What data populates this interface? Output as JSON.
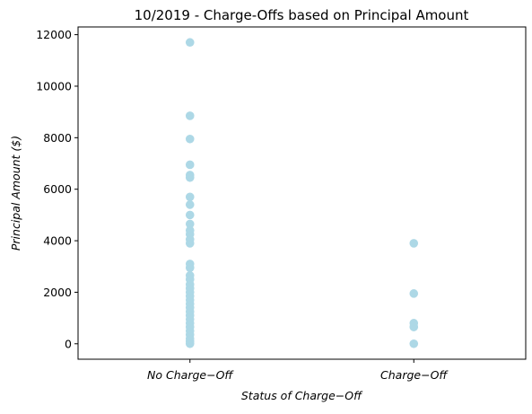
{
  "chart_data": {
    "type": "scatter",
    "title": "10/2019 - Charge-Offs based on Principal Amount",
    "xlabel": "Status of Charge−Off",
    "ylabel": "Principal Amount ($)",
    "categories": [
      "No Charge−Off",
      "Charge−Off"
    ],
    "x_ticks": [
      "No Charge−Off",
      "Charge−Off"
    ],
    "y_ticks": [
      "0",
      "2000",
      "4000",
      "6000",
      "8000",
      "10000",
      "12000"
    ],
    "y_tick_values": [
      0,
      2000,
      4000,
      6000,
      8000,
      10000,
      12000
    ],
    "ylim": [
      -600,
      12300
    ],
    "xlim": [
      -0.5,
      1.5
    ],
    "grid": false,
    "point_color": "#add8e6",
    "series": [
      {
        "values_by_category": [
          [
            11700,
            8850,
            7950,
            6950,
            6550,
            6450,
            5700,
            5400,
            5000,
            4650,
            4400,
            4250,
            4050,
            3900,
            3100,
            2950,
            2650,
            2500,
            2300,
            2150,
            2000,
            1850,
            1700,
            1550,
            1400,
            1250,
            1100,
            950,
            800,
            650,
            500,
            350,
            200,
            100,
            0
          ],
          [
            3900,
            1950,
            800,
            650,
            0
          ]
        ]
      }
    ]
  }
}
